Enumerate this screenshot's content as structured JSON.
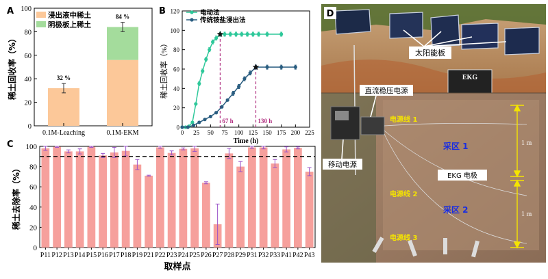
{
  "chart_data": [
    {
      "panel": "A",
      "type": "bar",
      "stacked": true,
      "categories": [
        "0.1M-Leaching",
        "0.1M-EKM"
      ],
      "series": [
        {
          "name": "浸出液中稀土",
          "color": "#fcc899",
          "values": [
            32,
            56
          ]
        },
        {
          "name": "阴极板上稀土",
          "color": "#a4dc9c",
          "values": [
            0,
            28
          ]
        }
      ],
      "totals": [
        32,
        84
      ],
      "total_errors": [
        4,
        4
      ],
      "total_labels": [
        "32 %",
        "84 %"
      ],
      "ylabel": "稀土回收率（%）",
      "ylim": [
        0,
        100
      ],
      "yticks": [
        0,
        20,
        40,
        60,
        80,
        100
      ]
    },
    {
      "panel": "B",
      "type": "line",
      "xlabel": "Time (h)",
      "ylabel": "稀土回收率（%）",
      "xlim": [
        0,
        225
      ],
      "ylim": [
        0,
        120
      ],
      "xticks": [
        0,
        25,
        50,
        75,
        100,
        125,
        150,
        175,
        200,
        225
      ],
      "yticks": [
        0,
        20,
        40,
        60,
        80,
        100,
        120
      ],
      "series": [
        {
          "name": "电动法",
          "color": "#2ec89a",
          "x": [
            0,
            6,
            12,
            18,
            24,
            30,
            36,
            42,
            48,
            54,
            60,
            67,
            75,
            85,
            95,
            105,
            115,
            125,
            135,
            150,
            175
          ],
          "y": [
            0,
            0,
            1,
            5,
            24,
            45,
            58,
            70,
            80,
            88,
            92,
            96,
            96,
            96,
            96,
            96,
            96,
            96,
            96,
            96,
            96
          ]
        },
        {
          "name": "传统铵盐浸出法",
          "color": "#2a5d80",
          "x": [
            0,
            10,
            20,
            30,
            40,
            50,
            60,
            70,
            80,
            90,
            100,
            110,
            120,
            130,
            150,
            175,
            200
          ],
          "y": [
            0,
            0,
            2,
            5,
            8,
            11,
            15,
            21,
            28,
            35,
            42,
            50,
            56,
            62,
            62,
            62,
            62
          ]
        }
      ],
      "markers": [
        {
          "label": "67 h",
          "x": 67,
          "y": 96,
          "color": "#b03080"
        },
        {
          "label": "130 h",
          "x": 130,
          "y": 62,
          "color": "#b03080"
        }
      ]
    },
    {
      "panel": "C",
      "type": "bar",
      "color": "#f6a09c",
      "xlabel": "取样点",
      "ylabel": "稀土去除率（%）",
      "ylim": [
        0,
        100
      ],
      "yticks": [
        0,
        20,
        40,
        60,
        80,
        100
      ],
      "reference_line": 90,
      "categories": [
        "P11",
        "P12",
        "P13",
        "P14",
        "P15",
        "P16",
        "P17",
        "P18",
        "P19",
        "P21",
        "P22",
        "P23",
        "P24",
        "P25",
        "P26",
        "P27",
        "P28",
        "P29",
        "P31",
        "P32",
        "P33",
        "P41",
        "P42",
        "P43"
      ],
      "values": [
        98,
        99.5,
        95,
        95,
        99.5,
        91,
        94,
        95.5,
        82,
        71,
        99,
        93.5,
        97.5,
        98,
        64,
        23,
        93,
        80,
        99,
        99,
        83,
        97,
        98.5,
        75
      ],
      "errors": [
        2,
        0.5,
        1.5,
        2.5,
        0.5,
        2,
        5,
        5,
        5,
        0.5,
        1,
        2,
        1,
        3,
        1,
        20,
        5,
        5,
        1,
        1.5,
        4,
        2.5,
        1,
        4
      ]
    }
  ],
  "panels": {
    "a": "A",
    "b": "B",
    "c": "C",
    "d": "D"
  },
  "photo": {
    "solar_label": "太阳能板",
    "ekg_sign": "EKG",
    "dc_power_label": "直流稳压电源",
    "mobile_power_label": "移动电源",
    "cable1": "电源线 1",
    "cable2": "电源线 2",
    "cable3": "电源线 3",
    "zone1": "采区 1",
    "zone2": "采区 2",
    "ekg_electrode": "EKG 电极",
    "dim1": "1 m",
    "dim2": "1 m"
  }
}
